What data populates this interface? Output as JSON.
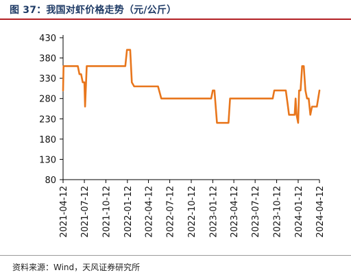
{
  "header": {
    "title": "图 37：我国对虾价格走势（元/公斤）"
  },
  "footer": {
    "source": "资料来源：Wind，天风证券研究所"
  },
  "colors": {
    "line": "#e8761c",
    "title": "#1f3b66",
    "rule": "#b21f24"
  },
  "chart_data": {
    "type": "line",
    "title": "图 37：我国对虾价格走势（元/公斤）",
    "xlabel": "",
    "ylabel": "",
    "ylim": [
      80,
      430
    ],
    "yticks": [
      "80",
      "130",
      "180",
      "230",
      "280",
      "330",
      "380",
      "430"
    ],
    "xticks": [
      "2021-04-12",
      "2021-07-12",
      "2021-10-12",
      "2022-01-12",
      "2022-04-12",
      "2022-07-12",
      "2022-10-12",
      "2023-01-12",
      "2023-04-12",
      "2023-07-12",
      "2023-10-12",
      "2024-01-12",
      "2024-04-12"
    ],
    "xrange": [
      "2021-04-12",
      "2024-04-12"
    ],
    "grid": false,
    "series": [
      {
        "points": [
          [
            "2021-04-12",
            300
          ],
          [
            "2021-04-14",
            360
          ],
          [
            "2021-06-14",
            360
          ],
          [
            "2021-06-21",
            340
          ],
          [
            "2021-06-28",
            340
          ],
          [
            "2021-07-05",
            320
          ],
          [
            "2021-07-12",
            320
          ],
          [
            "2021-07-15",
            260
          ],
          [
            "2021-07-22",
            360
          ],
          [
            "2022-01-03",
            360
          ],
          [
            "2022-01-10",
            400
          ],
          [
            "2022-01-24",
            400
          ],
          [
            "2022-01-31",
            320
          ],
          [
            "2022-02-10",
            310
          ],
          [
            "2022-05-23",
            310
          ],
          [
            "2022-06-06",
            280
          ],
          [
            "2022-12-19",
            280
          ],
          [
            "2023-01-05",
            280
          ],
          [
            "2023-01-12",
            300
          ],
          [
            "2023-01-19",
            300
          ],
          [
            "2023-01-30",
            220
          ],
          [
            "2023-03-20",
            220
          ],
          [
            "2023-03-27",
            280
          ],
          [
            "2023-09-25",
            280
          ],
          [
            "2023-10-02",
            300
          ],
          [
            "2023-11-20",
            300
          ],
          [
            "2023-11-27",
            270
          ],
          [
            "2023-12-04",
            240
          ],
          [
            "2023-12-28",
            240
          ],
          [
            "2024-01-01",
            280
          ],
          [
            "2024-01-05",
            240
          ],
          [
            "2024-01-12",
            220
          ],
          [
            "2024-01-16",
            300
          ],
          [
            "2024-01-22",
            300
          ],
          [
            "2024-01-29",
            360
          ],
          [
            "2024-02-05",
            360
          ],
          [
            "2024-02-12",
            300
          ],
          [
            "2024-02-19",
            280
          ],
          [
            "2024-02-26",
            280
          ],
          [
            "2024-03-04",
            240
          ],
          [
            "2024-03-11",
            260
          ],
          [
            "2024-03-25",
            260
          ],
          [
            "2024-04-01",
            260
          ],
          [
            "2024-04-12",
            300
          ]
        ]
      }
    ]
  }
}
